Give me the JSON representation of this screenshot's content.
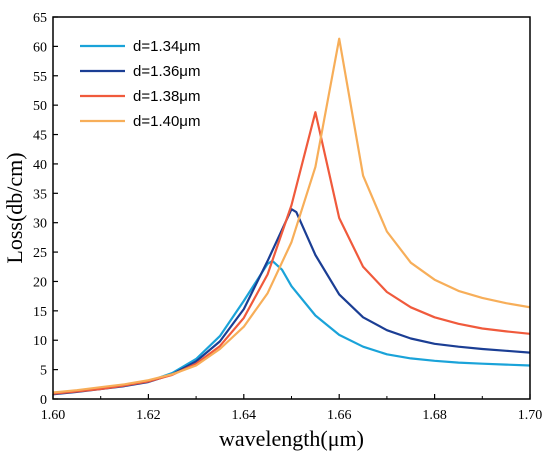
{
  "chart_data": {
    "type": "line",
    "xlabel": "wavelength(μm)",
    "ylabel": "Loss(db/cm)",
    "xlim": [
      1.6,
      1.7
    ],
    "ylim": [
      0,
      65
    ],
    "xticks": [
      "1.60",
      "1.62",
      "1.64",
      "1.66",
      "1.68",
      "1.70"
    ],
    "xtick_values": [
      1.6,
      1.62,
      1.64,
      1.66,
      1.68,
      1.7
    ],
    "yticks": [
      "0",
      "5",
      "10",
      "15",
      "20",
      "25",
      "30",
      "35",
      "40",
      "45",
      "50",
      "55",
      "60",
      "65"
    ],
    "ytick_values": [
      0,
      5,
      10,
      15,
      20,
      25,
      30,
      35,
      40,
      45,
      50,
      55,
      60,
      65
    ],
    "legend_position": "top-left",
    "grid": false,
    "series": [
      {
        "name": "d=1.34μm",
        "color": "#1AA3D9",
        "x": [
          1.6,
          1.605,
          1.61,
          1.615,
          1.62,
          1.625,
          1.63,
          1.635,
          1.64,
          1.645,
          1.646,
          1.648,
          1.65,
          1.655,
          1.66,
          1.665,
          1.67,
          1.675,
          1.68,
          1.685,
          1.69,
          1.695,
          1.7
        ],
        "y": [
          0.9,
          1.3,
          1.8,
          2.3,
          3.0,
          4.4,
          6.8,
          10.7,
          16.7,
          23.0,
          23.5,
          22.0,
          19.2,
          14.2,
          10.9,
          8.9,
          7.6,
          6.9,
          6.5,
          6.2,
          6.0,
          5.85,
          5.7
        ]
      },
      {
        "name": "d=1.36μm",
        "color": "#1B3E94",
        "x": [
          1.6,
          1.605,
          1.61,
          1.615,
          1.62,
          1.625,
          1.63,
          1.635,
          1.64,
          1.645,
          1.65,
          1.651,
          1.655,
          1.66,
          1.665,
          1.67,
          1.675,
          1.68,
          1.685,
          1.69,
          1.695,
          1.7
        ],
        "y": [
          0.8,
          1.2,
          1.7,
          2.2,
          2.9,
          4.2,
          6.4,
          9.8,
          15.3,
          23.5,
          32.3,
          31.8,
          24.5,
          17.8,
          13.9,
          11.7,
          10.3,
          9.4,
          8.9,
          8.5,
          8.2,
          7.9
        ]
      },
      {
        "name": "d=1.38μm",
        "color": "#F05A3C",
        "x": [
          1.6,
          1.605,
          1.61,
          1.615,
          1.62,
          1.625,
          1.63,
          1.635,
          1.64,
          1.645,
          1.65,
          1.655,
          1.66,
          1.665,
          1.67,
          1.675,
          1.68,
          1.685,
          1.69,
          1.695,
          1.7
        ],
        "y": [
          0.9,
          1.3,
          1.7,
          2.3,
          3.0,
          4.1,
          6.0,
          9.0,
          13.8,
          21.2,
          33.0,
          48.8,
          30.8,
          22.5,
          18.2,
          15.6,
          13.9,
          12.8,
          12.0,
          11.5,
          11.1
        ]
      },
      {
        "name": "d=1.40μm",
        "color": "#F7AE59",
        "x": [
          1.6,
          1.605,
          1.61,
          1.615,
          1.62,
          1.625,
          1.63,
          1.635,
          1.64,
          1.645,
          1.65,
          1.655,
          1.66,
          1.665,
          1.67,
          1.675,
          1.68,
          1.685,
          1.69,
          1.695,
          1.7
        ],
        "y": [
          1.1,
          1.5,
          2.0,
          2.5,
          3.2,
          4.2,
          5.7,
          8.5,
          12.3,
          18.0,
          26.7,
          39.5,
          61.3,
          38.0,
          28.5,
          23.2,
          20.3,
          18.4,
          17.2,
          16.3,
          15.6
        ]
      }
    ]
  }
}
